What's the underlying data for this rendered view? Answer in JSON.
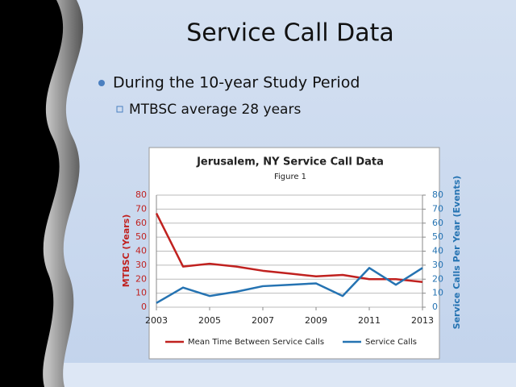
{
  "slide": {
    "title": "Service Call Data",
    "bullets": [
      "During the 10-year Study Period"
    ],
    "sub_bullets": [
      "MTBSC average 28 years"
    ]
  },
  "chart_data": {
    "type": "line",
    "title": "Jerusalem, NY Service Call Data",
    "subtitle": "Figure 1",
    "y_label": "MTBSC (Years)",
    "y2_label": "Service Calls Per Year (Events)",
    "x": [
      2003,
      2004,
      2005,
      2006,
      2007,
      2008,
      2009,
      2010,
      2011,
      2012,
      2013
    ],
    "xlim": [
      2003,
      2013
    ],
    "xticks": [
      2003,
      2005,
      2007,
      2009,
      2011,
      2013
    ],
    "ylim": [
      0,
      80
    ],
    "yticks": [
      0,
      10,
      20,
      30,
      40,
      50,
      60,
      70,
      80
    ],
    "y2lim": [
      0,
      80
    ],
    "y2ticks": [
      0,
      10,
      20,
      30,
      40,
      50,
      60,
      70,
      80
    ],
    "grid": true,
    "legend": "bottom",
    "series": [
      {
        "name": "Mean Time Between Service Calls",
        "color": "#c0211f",
        "values": [
          67,
          29,
          31,
          29,
          26,
          24,
          22,
          23,
          20,
          20,
          18
        ]
      },
      {
        "name": "Service Calls",
        "color": "#2573b2",
        "axis": "y2",
        "values": [
          3,
          14,
          8,
          11,
          15,
          16,
          17,
          8,
          28,
          16,
          28
        ]
      }
    ]
  }
}
